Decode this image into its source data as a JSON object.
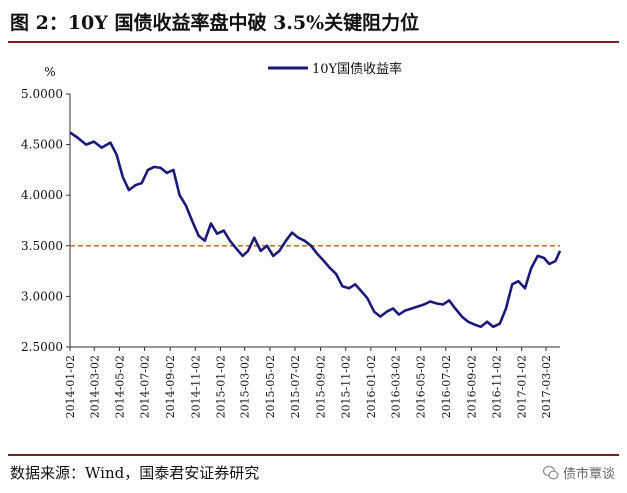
{
  "figure": {
    "title": "图 2：10Y 国债收益率盘中破 3.5%关键阻力位",
    "source": "数据来源：Wind，国泰君安证券研究",
    "watermark": "债市覃谈",
    "watermark_icon": "wechat-icon"
  },
  "chart_data": {
    "type": "line",
    "title": "",
    "xlabel": "",
    "ylabel": "%",
    "ylim": [
      2.5,
      5.0
    ],
    "yticks": [
      "5.0000",
      "4.5000",
      "4.0000",
      "3.5000",
      "3.0000",
      "2.5000"
    ],
    "xticks": [
      "2014-01-02",
      "2014-03-02",
      "2014-05-02",
      "2014-07-02",
      "2014-09-02",
      "2014-11-02",
      "2015-01-02",
      "2015-03-02",
      "2015-05-02",
      "2015-07-02",
      "2015-09-02",
      "2015-11-02",
      "2016-01-02",
      "2016-03-02",
      "2016-05-02",
      "2016-07-02",
      "2016-09-02",
      "2016-11-02",
      "2017-01-02",
      "2017-03-02"
    ],
    "grid": false,
    "legend": "top-center",
    "series": [
      {
        "name": "10Y国债收益率",
        "color": "#1a1a7a",
        "points": [
          [
            "2014-01-02",
            4.62
          ],
          [
            "2014-01-20",
            4.57
          ],
          [
            "2014-02-10",
            4.5
          ],
          [
            "2014-03-01",
            4.53
          ],
          [
            "2014-03-20",
            4.47
          ],
          [
            "2014-04-10",
            4.52
          ],
          [
            "2014-04-25",
            4.4
          ],
          [
            "2014-05-10",
            4.18
          ],
          [
            "2014-05-25",
            4.05
          ],
          [
            "2014-06-10",
            4.1
          ],
          [
            "2014-06-25",
            4.12
          ],
          [
            "2014-07-10",
            4.25
          ],
          [
            "2014-07-25",
            4.28
          ],
          [
            "2014-08-10",
            4.27
          ],
          [
            "2014-08-25",
            4.22
          ],
          [
            "2014-09-10",
            4.25
          ],
          [
            "2014-09-25",
            4.0
          ],
          [
            "2014-10-10",
            3.9
          ],
          [
            "2014-10-25",
            3.75
          ],
          [
            "2014-11-10",
            3.6
          ],
          [
            "2014-11-25",
            3.55
          ],
          [
            "2014-12-10",
            3.72
          ],
          [
            "2014-12-25",
            3.62
          ],
          [
            "2015-01-10",
            3.65
          ],
          [
            "2015-01-25",
            3.55
          ],
          [
            "2015-02-10",
            3.47
          ],
          [
            "2015-02-25",
            3.4
          ],
          [
            "2015-03-10",
            3.45
          ],
          [
            "2015-03-25",
            3.58
          ],
          [
            "2015-04-10",
            3.45
          ],
          [
            "2015-04-25",
            3.5
          ],
          [
            "2015-05-10",
            3.4
          ],
          [
            "2015-05-25",
            3.45
          ],
          [
            "2015-06-10",
            3.55
          ],
          [
            "2015-06-25",
            3.63
          ],
          [
            "2015-07-10",
            3.58
          ],
          [
            "2015-07-25",
            3.55
          ],
          [
            "2015-08-10",
            3.5
          ],
          [
            "2015-08-25",
            3.42
          ],
          [
            "2015-09-10",
            3.35
          ],
          [
            "2015-09-25",
            3.28
          ],
          [
            "2015-10-10",
            3.22
          ],
          [
            "2015-10-25",
            3.1
          ],
          [
            "2015-11-10",
            3.08
          ],
          [
            "2015-11-25",
            3.12
          ],
          [
            "2015-12-10",
            3.05
          ],
          [
            "2015-12-25",
            2.98
          ],
          [
            "2016-01-10",
            2.85
          ],
          [
            "2016-01-25",
            2.8
          ],
          [
            "2016-02-10",
            2.85
          ],
          [
            "2016-02-25",
            2.88
          ],
          [
            "2016-03-10",
            2.82
          ],
          [
            "2016-03-25",
            2.86
          ],
          [
            "2016-04-10",
            2.88
          ],
          [
            "2016-04-25",
            2.9
          ],
          [
            "2016-05-10",
            2.92
          ],
          [
            "2016-05-25",
            2.95
          ],
          [
            "2016-06-10",
            2.93
          ],
          [
            "2016-06-25",
            2.92
          ],
          [
            "2016-07-10",
            2.96
          ],
          [
            "2016-07-25",
            2.88
          ],
          [
            "2016-08-10",
            2.8
          ],
          [
            "2016-08-25",
            2.75
          ],
          [
            "2016-09-10",
            2.72
          ],
          [
            "2016-09-25",
            2.7
          ],
          [
            "2016-10-10",
            2.75
          ],
          [
            "2016-10-25",
            2.7
          ],
          [
            "2016-11-10",
            2.73
          ],
          [
            "2016-11-25",
            2.88
          ],
          [
            "2016-12-10",
            3.12
          ],
          [
            "2016-12-25",
            3.15
          ],
          [
            "2017-01-10",
            3.08
          ],
          [
            "2017-01-25",
            3.28
          ],
          [
            "2017-02-10",
            3.4
          ],
          [
            "2017-02-25",
            3.38
          ],
          [
            "2017-03-10",
            3.32
          ],
          [
            "2017-03-25",
            3.35
          ],
          [
            "2017-04-05",
            3.45
          ]
        ]
      },
      {
        "name": "",
        "color": "#e07020",
        "style": "dashed",
        "points": [
          [
            "2014-01-02",
            3.5
          ],
          [
            "2017-04-05",
            3.5
          ]
        ]
      }
    ]
  }
}
